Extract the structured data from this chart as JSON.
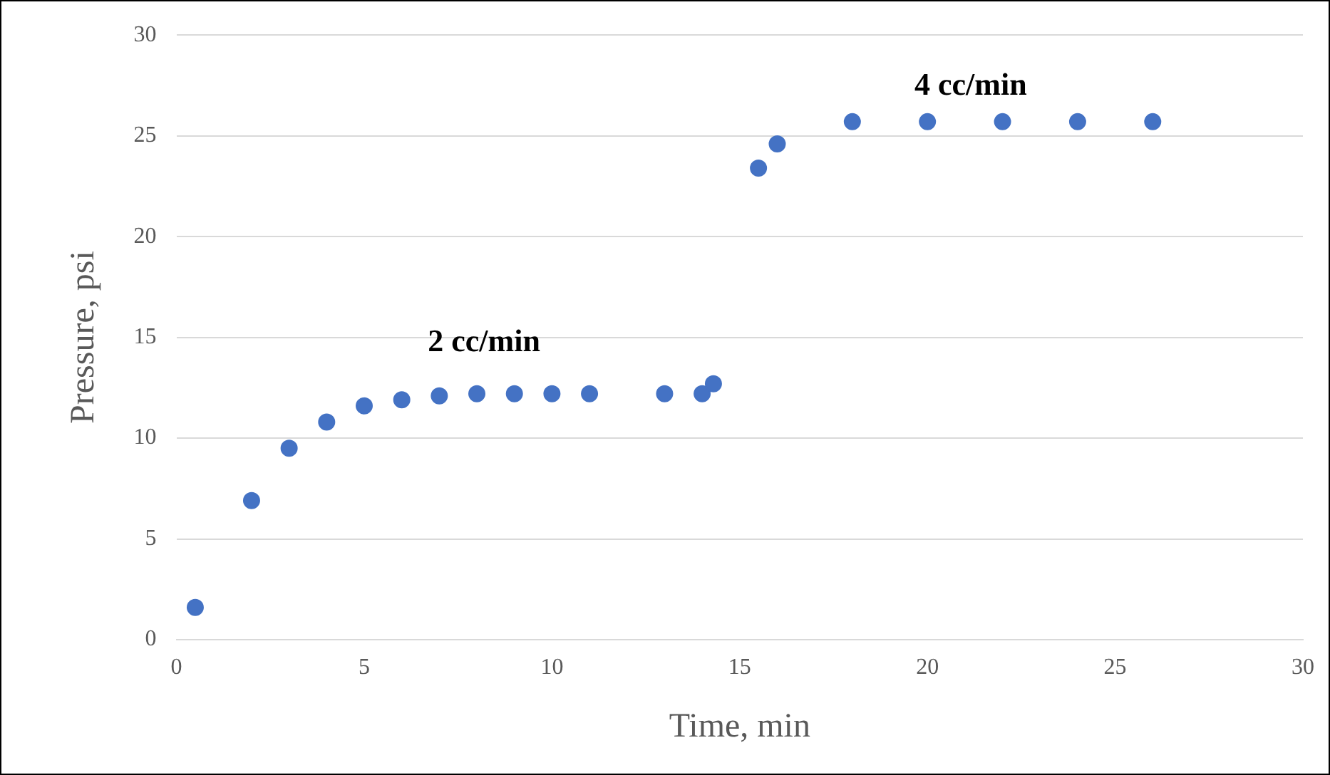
{
  "chart_data": {
    "type": "scatter",
    "xlabel": "Time, min",
    "ylabel": "Pressure, psi",
    "x": [
      0.5,
      2,
      3,
      4,
      5,
      6,
      7,
      8,
      9,
      10,
      11,
      13,
      14,
      14.3,
      15.5,
      16,
      18,
      20,
      22,
      24,
      26
    ],
    "series": [
      {
        "color": "#4472c4",
        "values": [
          1.6,
          6.9,
          9.5,
          10.8,
          11.6,
          11.9,
          12.1,
          12.2,
          12.2,
          12.2,
          12.2,
          12.2,
          12.2,
          12.7,
          23.4,
          24.6,
          25.7,
          25.7,
          25.7,
          25.7,
          25.7
        ]
      }
    ],
    "xlim": [
      0,
      30
    ],
    "xticks": [
      0,
      5,
      10,
      15,
      20,
      25,
      30
    ],
    "ylim": [
      0,
      30
    ],
    "yticks": [
      0,
      5,
      10,
      15,
      20,
      25,
      30
    ],
    "grid": "y",
    "legend": false,
    "marker": "circle",
    "annotations": [
      "2 cc/min",
      "4 cc/min"
    ]
  }
}
